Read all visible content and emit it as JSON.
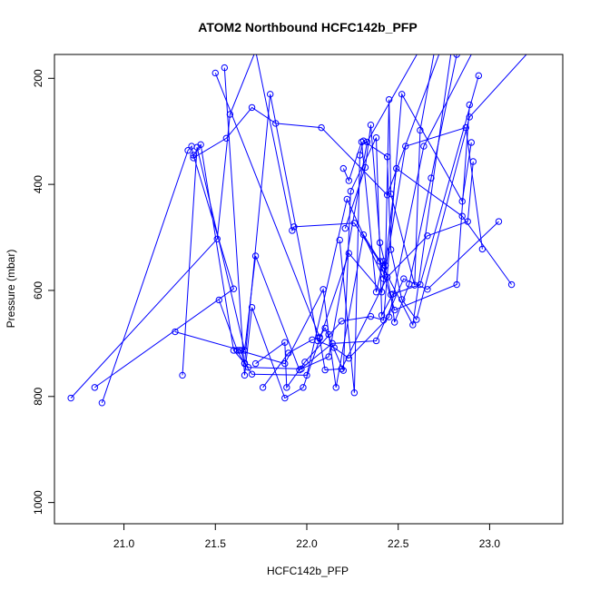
{
  "chart_data": {
    "type": "line",
    "title": "ATOM2 Northbound HCFC142b_PFP",
    "xlabel": "HCFC142b_PFP",
    "ylabel": "Pressure (mbar)",
    "xlim": [
      20.62,
      23.4
    ],
    "ylim": [
      1040,
      155
    ],
    "y_reversed": true,
    "x_ticks": [
      21.0,
      21.5,
      22.0,
      22.5,
      23.0
    ],
    "x_tick_labels": [
      "21.0",
      "21.5",
      "22.0",
      "22.5",
      "23.0"
    ],
    "y_ticks": [
      200,
      400,
      600,
      800,
      1000
    ],
    "y_tick_labels": [
      "200",
      "400",
      "600",
      "800",
      "1000"
    ],
    "grid": false,
    "color": "#0000ff",
    "series": [
      {
        "x": [
          20.71,
          21.51,
          21.58,
          21.72,
          21.92,
          21.93,
          22.26,
          22.42,
          22.58,
          22.8
        ],
        "y": [
          803,
          503,
          268,
          148,
          487,
          480,
          473,
          558,
          665,
          125
        ]
      },
      {
        "x": [
          20.84,
          21.6,
          21.38,
          21.42,
          21.6,
          21.68,
          21.97,
          22.12,
          22.33,
          22.66
        ],
        "y": [
          783,
          597,
          345,
          325,
          713,
          745,
          748,
          725,
          320,
          120
        ]
      },
      {
        "x": [
          20.88,
          21.35,
          21.37,
          21.38,
          21.56,
          21.7,
          21.83,
          22.08,
          22.44,
          22.76
        ],
        "y": [
          812,
          336,
          328,
          350,
          313,
          255,
          285,
          293,
          420,
          120
        ]
      },
      {
        "x": [
          21.28,
          21.64,
          21.66,
          21.8,
          22.06,
          22.15,
          22.23,
          22.45,
          22.64,
          22.93
        ],
        "y": [
          678,
          713,
          737,
          230,
          695,
          708,
          728,
          650,
          328,
          135
        ]
      },
      {
        "x": [
          21.32,
          21.4,
          21.66,
          21.72,
          21.96,
          22.14,
          22.38,
          22.53,
          22.66,
          23.05
        ],
        "y": [
          760,
          330,
          713,
          535,
          750,
          700,
          695,
          578,
          598,
          470
        ]
      },
      {
        "x": [
          21.52,
          21.62,
          21.66,
          21.7,
          22.0,
          22.22,
          22.42,
          22.49,
          22.85,
          23.12
        ],
        "y": [
          618,
          713,
          738,
          758,
          760,
          428,
          578,
          370,
          460,
          589
        ]
      },
      {
        "x": [
          21.55,
          21.66,
          21.7,
          21.88,
          21.98,
          22.23,
          22.41,
          22.54,
          22.87,
          22.96
        ],
        "y": [
          180,
          760,
          632,
          803,
          783,
          530,
          603,
          328,
          293,
          522
        ]
      },
      {
        "x": [
          21.72,
          21.88,
          21.89,
          21.99,
          22.19,
          22.35,
          22.42,
          22.52,
          22.85,
          22.9
        ],
        "y": [
          738,
          698,
          783,
          735,
          658,
          649,
          656,
          230,
          432,
          321
        ]
      },
      {
        "x": [
          21.76,
          21.9,
          22.03,
          22.07,
          22.1,
          22.19,
          22.44,
          22.66,
          22.88,
          22.91
        ],
        "y": [
          783,
          718,
          693,
          690,
          750,
          748,
          575,
          497,
          470,
          357
        ]
      },
      {
        "x": [
          21.63,
          21.88,
          22.09,
          22.12,
          22.16,
          22.31,
          22.4,
          22.48,
          22.82,
          22.89
        ],
        "y": [
          713,
          738,
          598,
          683,
          783,
          495,
          545,
          637,
          589,
          250
        ]
      },
      {
        "x": [
          21.5,
          22.07,
          22.1,
          22.2,
          22.24,
          22.38,
          22.41,
          22.47,
          22.62,
          22.94
        ],
        "y": [
          190,
          688,
          671,
          751,
          413,
          312,
          647,
          607,
          589,
          195
        ]
      },
      {
        "x": [
          22.18,
          22.26,
          22.29,
          22.31,
          22.44,
          22.46,
          22.52,
          22.6,
          22.89,
          23.22
        ],
        "y": [
          505,
          793,
          345,
          318,
          348,
          523,
          617,
          655,
          273,
          148
        ]
      },
      {
        "x": [
          22.21,
          22.32,
          22.35,
          22.4,
          22.43,
          22.45,
          22.46,
          22.59,
          22.62,
          22.7
        ],
        "y": [
          483,
          368,
          288,
          510,
          553,
          240,
          418,
          590,
          298,
          145
        ]
      },
      {
        "x": [
          22.2,
          22.23,
          22.3,
          22.38,
          22.42,
          22.46,
          22.48,
          22.56,
          22.68,
          22.82
        ],
        "y": [
          370,
          393,
          320,
          603,
          545,
          608,
          660,
          588,
          388,
          155
        ]
      }
    ]
  }
}
